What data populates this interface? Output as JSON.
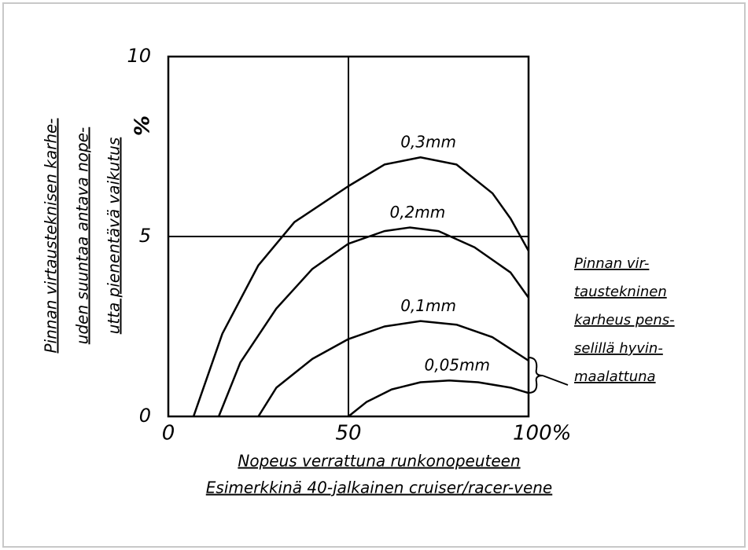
{
  "chart_data": {
    "type": "line",
    "ylabel": [
      "Pinnan virtausteknisen karhe-",
      "uden suuntaa antava nope-",
      "utta pienentävä vaikutus"
    ],
    "yunit": "%",
    "xlabel": [
      "Nopeus verrattuna runkonopeuteen",
      "Esimerkkinä 40-jalkainen cruiser/racer-vene"
    ],
    "annotation": [
      "Pinnan vir-",
      "taustekninen",
      "karheus pens-",
      "selillä hyvin-",
      "maalattuna"
    ],
    "xlim": [
      0,
      100
    ],
    "ylim": [
      0,
      10
    ],
    "xticks": [
      0,
      50,
      {
        "value": 100,
        "label": "100%"
      }
    ],
    "yticks": [
      0,
      5,
      10
    ],
    "grid": true,
    "series": [
      {
        "name": "0,3mm",
        "color": "#000000",
        "x": [
          7,
          15,
          25,
          35,
          50,
          60,
          70,
          80,
          90,
          95,
          100
        ],
        "values": [
          0,
          2.3,
          4.2,
          5.4,
          6.4,
          7.0,
          7.2,
          7.0,
          6.2,
          5.5,
          4.6
        ]
      },
      {
        "name": "0,2mm",
        "color": "#000000",
        "x": [
          14,
          20,
          30,
          40,
          50,
          60,
          67,
          75,
          85,
          95,
          100
        ],
        "values": [
          0,
          1.5,
          3.0,
          4.1,
          4.8,
          5.15,
          5.25,
          5.15,
          4.7,
          4.0,
          3.3
        ]
      },
      {
        "name": "0,1mm",
        "color": "#000000",
        "x": [
          25,
          30,
          40,
          50,
          60,
          70,
          80,
          90,
          100
        ],
        "values": [
          0,
          0.8,
          1.6,
          2.15,
          2.5,
          2.65,
          2.55,
          2.2,
          1.55
        ]
      },
      {
        "name": "0,05mm",
        "color": "#000000",
        "x": [
          50,
          55,
          62,
          70,
          78,
          86,
          95,
          100
        ],
        "values": [
          0,
          0.4,
          0.75,
          0.95,
          1.0,
          0.95,
          0.8,
          0.65
        ]
      }
    ]
  }
}
